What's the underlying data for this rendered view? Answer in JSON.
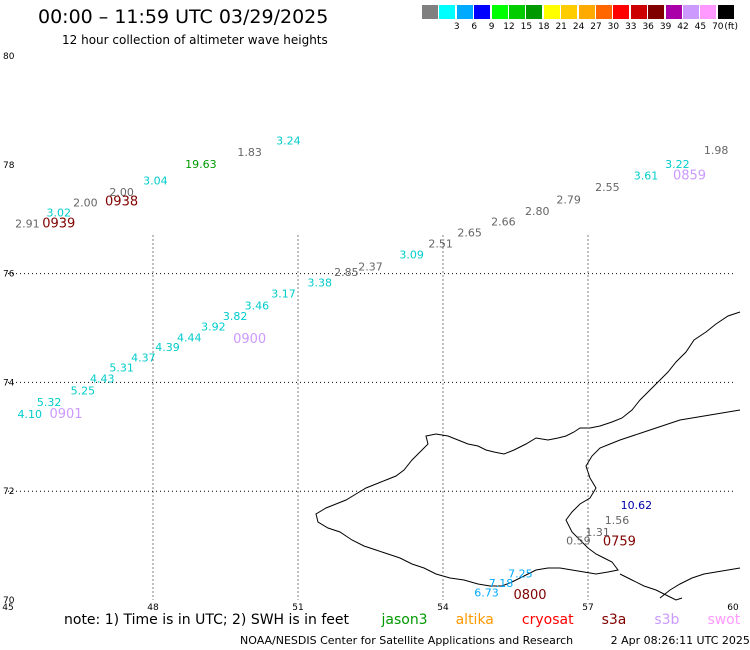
{
  "header": {
    "title": "00:00 – 11:59 UTC 03/29/2025",
    "subtitle": "12 hour collection of altimeter wave heights"
  },
  "legend": {
    "unit": "(ft)",
    "bins": [
      {
        "label": "",
        "color": "#808080"
      },
      {
        "label": "3",
        "color": "#00ffff"
      },
      {
        "label": "6",
        "color": "#00aaff"
      },
      {
        "label": "9",
        "color": "#0000ff"
      },
      {
        "label": "12",
        "color": "#00ff00"
      },
      {
        "label": "15",
        "color": "#00cc00"
      },
      {
        "label": "18",
        "color": "#009900"
      },
      {
        "label": "21",
        "color": "#ffff00"
      },
      {
        "label": "24",
        "color": "#ffcc00"
      },
      {
        "label": "27",
        "color": "#ffaa00"
      },
      {
        "label": "30",
        "color": "#ff6600"
      },
      {
        "label": "33",
        "color": "#ff0000"
      },
      {
        "label": "36",
        "color": "#cc0000"
      },
      {
        "label": "39",
        "color": "#800000"
      },
      {
        "label": "42",
        "color": "#aa00aa"
      },
      {
        "label": "45",
        "color": "#cc99ff"
      },
      {
        "label": "70",
        "color": "#ff99ff"
      },
      {
        "label": "",
        "color": "#000000"
      }
    ]
  },
  "axes": {
    "lon_ticks": [
      "45",
      "48",
      "51",
      "54",
      "57",
      "60"
    ],
    "lat_ticks": [
      "70",
      "72",
      "74",
      "76",
      "78",
      "80"
    ]
  },
  "observations": [
    {
      "v": "2.91",
      "lon": 45.4,
      "lat": 76.85,
      "color": "#666666"
    },
    {
      "v": "3.02",
      "lon": 46.05,
      "lat": 77.05,
      "color": "#00cccc"
    },
    {
      "v": "2.00",
      "lon": 46.6,
      "lat": 77.23,
      "color": "#666666"
    },
    {
      "v": "2.00",
      "lon": 47.35,
      "lat": 77.43,
      "color": "#666666"
    },
    {
      "v": "3.04",
      "lon": 48.05,
      "lat": 77.64,
      "color": "#00cccc"
    },
    {
      "v": "19.63",
      "lon": 48.99,
      "lat": 77.94,
      "color": "#009900"
    },
    {
      "v": "1.83",
      "lon": 50.0,
      "lat": 78.16,
      "color": "#666666"
    },
    {
      "v": "3.24",
      "lon": 50.8,
      "lat": 78.37,
      "color": "#00cccc"
    },
    {
      "v": "4.10",
      "lon": 45.45,
      "lat": 73.35,
      "color": "#00cccc"
    },
    {
      "v": "5.32",
      "lon": 45.85,
      "lat": 73.57,
      "color": "#00cccc"
    },
    {
      "v": "5.25",
      "lon": 46.55,
      "lat": 73.78,
      "color": "#00cccc"
    },
    {
      "v": "4.43",
      "lon": 46.95,
      "lat": 74.0,
      "color": "#00cccc"
    },
    {
      "v": "5.31",
      "lon": 47.35,
      "lat": 74.2,
      "color": "#00cccc"
    },
    {
      "v": "4.37",
      "lon": 47.8,
      "lat": 74.38,
      "color": "#00cccc"
    },
    {
      "v": "4.39",
      "lon": 48.3,
      "lat": 74.58,
      "color": "#00cccc"
    },
    {
      "v": "4.44",
      "lon": 48.75,
      "lat": 74.75,
      "color": "#00cccc"
    },
    {
      "v": "3.92",
      "lon": 49.25,
      "lat": 74.95,
      "color": "#00cccc"
    },
    {
      "v": "3.82",
      "lon": 49.7,
      "lat": 75.15,
      "color": "#00cccc"
    },
    {
      "v": "3.46",
      "lon": 50.15,
      "lat": 75.34,
      "color": "#00cccc"
    },
    {
      "v": "3.17",
      "lon": 50.7,
      "lat": 75.56,
      "color": "#00cccc"
    },
    {
      "v": "3.38",
      "lon": 51.45,
      "lat": 75.76,
      "color": "#00cccc"
    },
    {
      "v": "2.85",
      "lon": 52.0,
      "lat": 75.96,
      "color": "#666666"
    },
    {
      "v": "2.37",
      "lon": 52.5,
      "lat": 76.06,
      "color": "#666666"
    },
    {
      "v": "3.09",
      "lon": 53.35,
      "lat": 76.28,
      "color": "#00cccc"
    },
    {
      "v": "2.51",
      "lon": 53.95,
      "lat": 76.48,
      "color": "#666666"
    },
    {
      "v": "2.65",
      "lon": 54.55,
      "lat": 76.68,
      "color": "#666666"
    },
    {
      "v": "2.66",
      "lon": 55.25,
      "lat": 76.88,
      "color": "#666666"
    },
    {
      "v": "2.80",
      "lon": 55.95,
      "lat": 77.08,
      "color": "#666666"
    },
    {
      "v": "2.79",
      "lon": 56.6,
      "lat": 77.29,
      "color": "#666666"
    },
    {
      "v": "2.55",
      "lon": 57.4,
      "lat": 77.52,
      "color": "#666666"
    },
    {
      "v": "3.61",
      "lon": 58.2,
      "lat": 77.73,
      "color": "#00cccc"
    },
    {
      "v": "3.22",
      "lon": 58.85,
      "lat": 77.94,
      "color": "#00cccc"
    },
    {
      "v": "1.98",
      "lon": 59.65,
      "lat": 78.2,
      "color": "#666666"
    },
    {
      "v": "6.73",
      "lon": 54.9,
      "lat": 70.06,
      "color": "#00aaff"
    },
    {
      "v": "7.18",
      "lon": 55.2,
      "lat": 70.24,
      "color": "#00aaff"
    },
    {
      "v": "7.25",
      "lon": 55.6,
      "lat": 70.41,
      "color": "#00aaff"
    },
    {
      "v": "0.59",
      "lon": 56.8,
      "lat": 71.02,
      "color": "#666666"
    },
    {
      "v": "1.31",
      "lon": 57.2,
      "lat": 71.18,
      "color": "#666666"
    },
    {
      "v": "1.56",
      "lon": 57.6,
      "lat": 71.4,
      "color": "#666666"
    },
    {
      "v": "10.62",
      "lon": 58.0,
      "lat": 71.67,
      "color": "#0000aa"
    }
  ],
  "pass_times": [
    {
      "t": "0939",
      "lon": 46.05,
      "lat": 76.85,
      "color": "#800000"
    },
    {
      "t": "0938",
      "lon": 47.35,
      "lat": 77.25,
      "color": "#800000"
    },
    {
      "t": "0859",
      "lon": 59.1,
      "lat": 77.73,
      "color": "#cc99ff"
    },
    {
      "t": "0900",
      "lon": 50.0,
      "lat": 74.72,
      "color": "#cc99ff"
    },
    {
      "t": "0901",
      "lon": 46.2,
      "lat": 73.35,
      "color": "#cc99ff"
    },
    {
      "t": "0759",
      "lon": 57.65,
      "lat": 71.0,
      "color": "#800000"
    },
    {
      "t": "0800",
      "lon": 55.8,
      "lat": 70.02,
      "color": "#800000"
    }
  ],
  "note": {
    "prefix": "note:  1) Time is in UTC;  2) SWH is in feet",
    "satellites": [
      {
        "name": "jason3",
        "color": "#009900"
      },
      {
        "name": "altika",
        "color": "#ff9900"
      },
      {
        "name": "cryosat",
        "color": "#ff0000"
      },
      {
        "name": "s3a",
        "color": "#800000"
      },
      {
        "name": "s3b",
        "color": "#cc99ff"
      },
      {
        "name": "swot",
        "color": "#ff99ff"
      }
    ]
  },
  "footer": {
    "credit": "NOAA/NESDIS Center for Satellite Applications and Research",
    "timestamp": "2 Apr 08:26:11 UTC 2025"
  }
}
